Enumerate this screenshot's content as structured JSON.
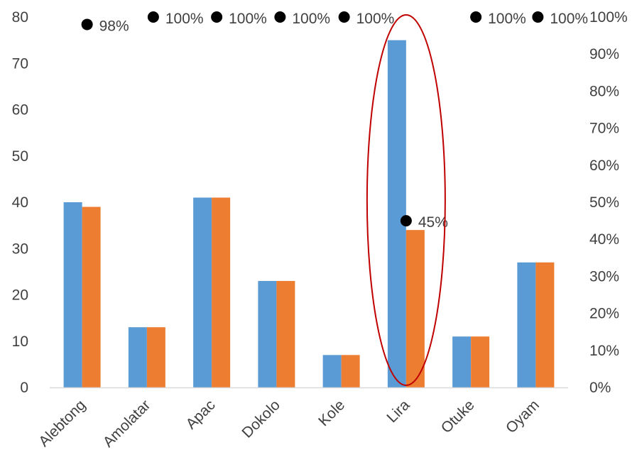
{
  "chart_data": {
    "type": "bar",
    "categories": [
      "Alebtong",
      "Amolatar",
      "Apac",
      "Dokolo",
      "Kole",
      "Lira",
      "Otuke",
      "Oyam"
    ],
    "series": [
      {
        "values": [
          40,
          13,
          41,
          23,
          7,
          75,
          11,
          27
        ],
        "color": "#5B9BD5",
        "axis": "left"
      },
      {
        "values": [
          39,
          13,
          41,
          23,
          7,
          34,
          11,
          27
        ],
        "color": "#ED7D31",
        "axis": "left"
      },
      {
        "type": "scatter",
        "values": [
          0.98,
          1.0,
          1.0,
          1.0,
          1.0,
          0.45,
          1.0,
          1.0
        ],
        "labels": [
          "98%",
          "100%",
          "100%",
          "100%",
          "100%",
          "45%",
          "100%",
          "100%"
        ],
        "color": "#000000",
        "axis": "right"
      }
    ],
    "ylim": [
      0,
      80
    ],
    "yticks": [
      "0",
      "10",
      "20",
      "30",
      "40",
      "50",
      "60",
      "70",
      "80"
    ],
    "y2lim": [
      0,
      1
    ],
    "y2ticks": [
      "0%",
      "10%",
      "20%",
      "30%",
      "40%",
      "50%",
      "60%",
      "70%",
      "80%",
      "90%",
      "100%"
    ],
    "annotation": {
      "shape": "ellipse",
      "category": "Lira",
      "color": "#C00000"
    },
    "grid": false,
    "legend": "none"
  }
}
